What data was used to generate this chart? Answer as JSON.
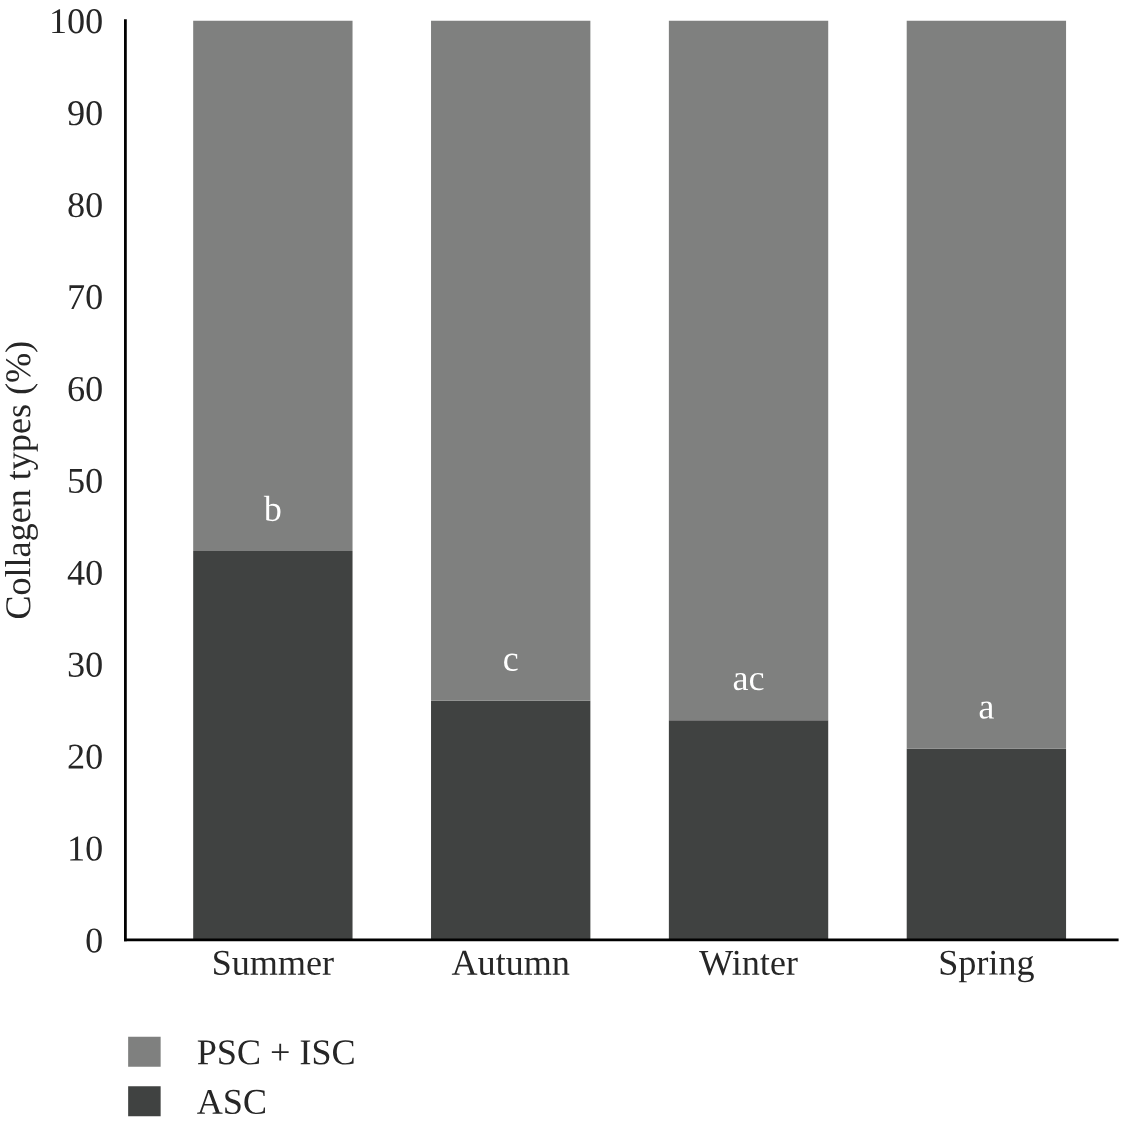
{
  "chart_data": {
    "type": "bar",
    "stacked": true,
    "ylabel": "Collagen types (%)",
    "categories": [
      "Summer",
      "Autumn",
      "Winter",
      "Spring"
    ],
    "series": [
      {
        "name": "ASC",
        "color": "#404241",
        "values": [
          42.3,
          26.0,
          23.9,
          20.8
        ]
      },
      {
        "name": "PSC + ISC",
        "color": "#7f807f",
        "values": [
          57.7,
          74.0,
          76.1,
          79.2
        ]
      }
    ],
    "ylim": [
      0,
      100
    ],
    "yticks": [
      0,
      10,
      20,
      30,
      40,
      50,
      60,
      70,
      80,
      90,
      100
    ],
    "annotations": [
      "b",
      "c",
      "ac",
      "a"
    ],
    "grid": false,
    "legend": "bottom left"
  }
}
